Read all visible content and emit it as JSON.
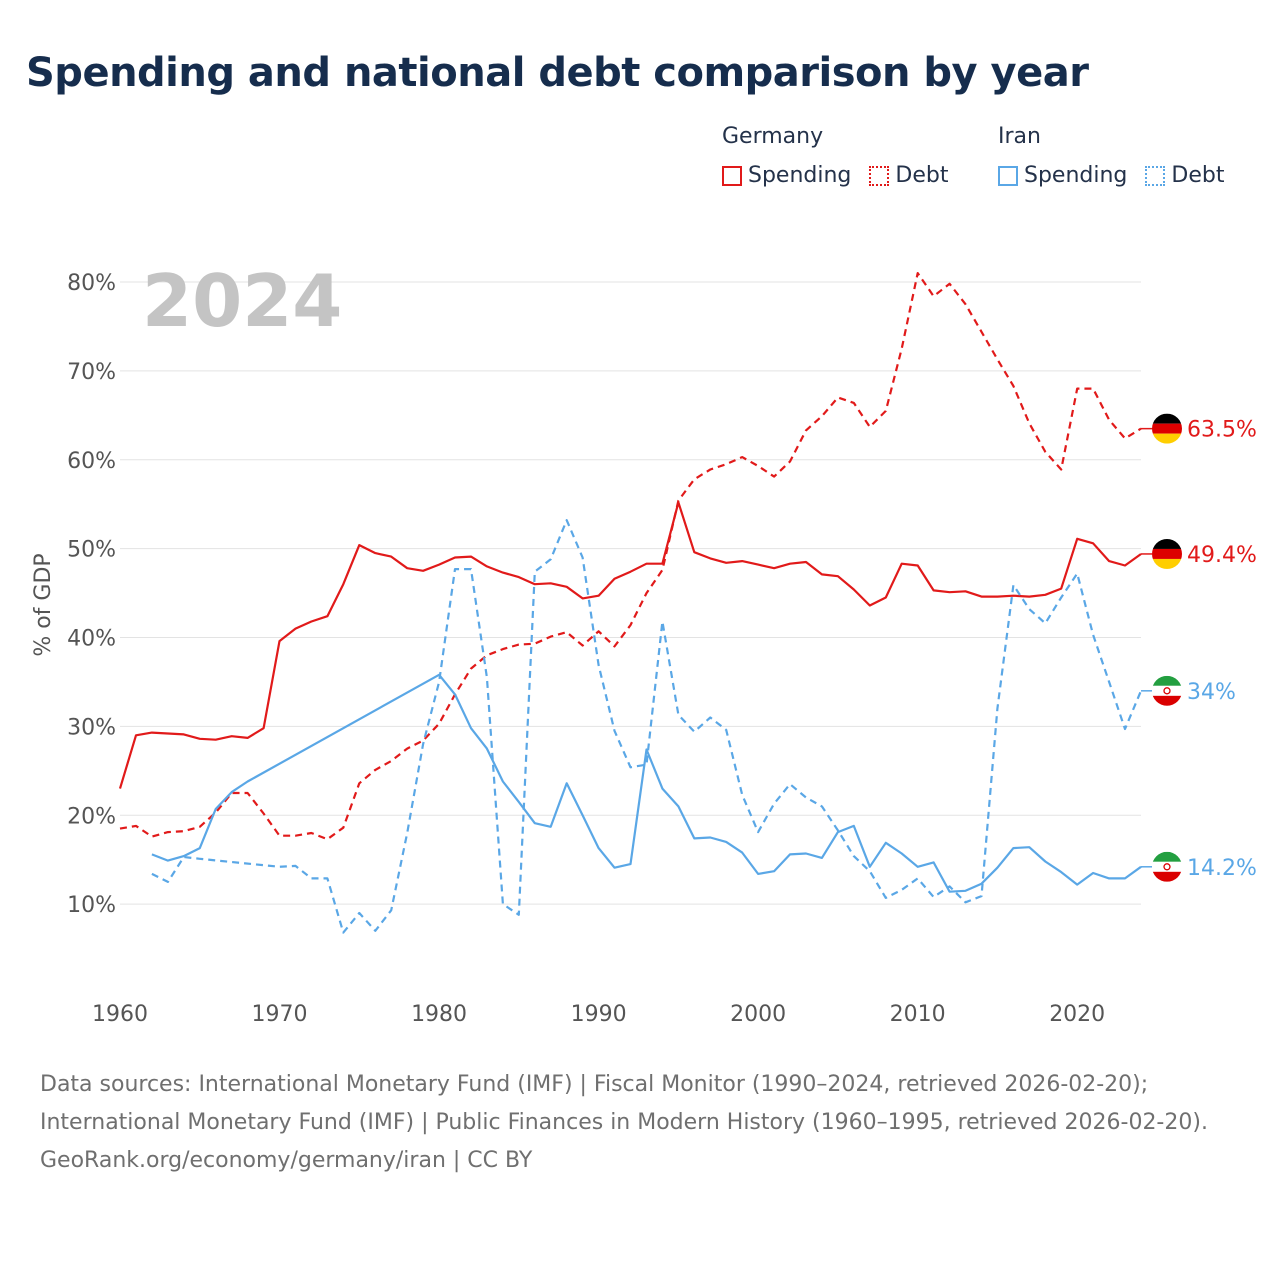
{
  "title": "Spending and national debt comparison by year",
  "legend": {
    "groups": [
      {
        "name": "Germany",
        "color": "#e11a1a",
        "items": [
          {
            "label": "Spending",
            "style": "solid"
          },
          {
            "label": "Debt",
            "style": "dotted"
          }
        ]
      },
      {
        "name": "Iran",
        "color": "#5aa7e6",
        "items": [
          {
            "label": "Spending",
            "style": "solid"
          },
          {
            "label": "Debt",
            "style": "dotted"
          }
        ]
      }
    ]
  },
  "colors": {
    "germany": "#e11a1a",
    "iran": "#5aa7e6",
    "grid": "#e3e3e3",
    "axis_text": "#555555",
    "year_watermark": "#c4c4c4"
  },
  "year_label": "2024",
  "end_labels": [
    {
      "series": "germany_debt",
      "text": "63.5%",
      "flag": "germany-flag-icon"
    },
    {
      "series": "germany_spending",
      "text": "49.4%",
      "flag": "germany-flag-icon"
    },
    {
      "series": "iran_debt",
      "text": "34%",
      "flag": "iran-flag-icon"
    },
    {
      "series": "iran_spending",
      "text": "14.2%",
      "flag": "iran-flag-icon"
    }
  ],
  "footer": {
    "sources": "Data sources: International Monetary Fund (IMF) | Fiscal Monitor (1990–2024, retrieved 2026-02-20); International Monetary Fund (IMF) | Public Finances in Modern History (1960–1995, retrieved 2026-02-20).",
    "attribution": "GeoRank.org/economy/germany/iran | CC BY"
  },
  "chart_data": {
    "type": "line",
    "title": "Spending and national debt comparison by year",
    "xlabel": "",
    "ylabel": "% of GDP",
    "xlim": [
      1960,
      2024
    ],
    "ylim": [
      0,
      80
    ],
    "x_ticks": [
      1960,
      1970,
      1980,
      1990,
      2000,
      2010,
      2020
    ],
    "y_ticks": [
      10,
      20,
      30,
      40,
      50,
      60,
      70,
      80
    ],
    "y_tick_suffix": "%",
    "grid": true,
    "legend_position": "top-right",
    "series": [
      {
        "id": "germany_spending",
        "name": "Germany Spending",
        "country": "germany",
        "style": "solid",
        "x": [
          1960,
          1961,
          1962,
          1963,
          1964,
          1965,
          1966,
          1967,
          1968,
          1969,
          1970,
          1971,
          1972,
          1973,
          1974,
          1975,
          1976,
          1977,
          1978,
          1979,
          1980,
          1981,
          1982,
          1983,
          1984,
          1985,
          1986,
          1987,
          1988,
          1989,
          1990,
          1991,
          1992,
          1993,
          1994,
          1995,
          1996,
          1997,
          1998,
          1999,
          2000,
          2001,
          2002,
          2003,
          2004,
          2005,
          2006,
          2007,
          2008,
          2009,
          2010,
          2011,
          2012,
          2013,
          2014,
          2015,
          2016,
          2017,
          2018,
          2019,
          2020,
          2021,
          2022,
          2023,
          2024
        ],
        "values": [
          23,
          29,
          29.3,
          29.2,
          29.1,
          28.6,
          28.5,
          28.9,
          28.7,
          29.8,
          39.6,
          41,
          41.8,
          42.4,
          46,
          50.4,
          49.5,
          49.1,
          47.8,
          47.5,
          48.2,
          49,
          49.1,
          48,
          47.3,
          46.8,
          46,
          46.1,
          45.7,
          44.4,
          44.7,
          46.6,
          47.4,
          48.3,
          48.3,
          55.2,
          49.6,
          48.9,
          48.4,
          48.6,
          48.2,
          47.8,
          48.3,
          48.5,
          47.1,
          46.9,
          45.4,
          43.6,
          44.5,
          48.3,
          48.1,
          45.3,
          45.1,
          45.2,
          44.6,
          44.6,
          44.7,
          44.6,
          44.8,
          45.5,
          51.1,
          50.6,
          48.6,
          48.1,
          49.4
        ]
      },
      {
        "id": "germany_debt",
        "name": "Germany Debt",
        "country": "germany",
        "style": "dashed",
        "x": [
          1960,
          1961,
          1962,
          1963,
          1964,
          1965,
          1966,
          1967,
          1968,
          1969,
          1970,
          1971,
          1972,
          1973,
          1974,
          1975,
          1976,
          1977,
          1978,
          1979,
          1980,
          1981,
          1982,
          1983,
          1984,
          1985,
          1986,
          1987,
          1988,
          1989,
          1990,
          1991,
          1992,
          1993,
          1994,
          1995,
          1996,
          1997,
          1998,
          1999,
          2000,
          2001,
          2002,
          2003,
          2004,
          2005,
          2006,
          2007,
          2008,
          2009,
          2010,
          2011,
          2012,
          2013,
          2014,
          2015,
          2016,
          2017,
          2018,
          2019,
          2020,
          2021,
          2022,
          2023,
          2024
        ],
        "values": [
          18.5,
          18.8,
          17.6,
          18.1,
          18.2,
          18.7,
          20.3,
          22.5,
          22.5,
          20.2,
          17.7,
          17.7,
          18,
          17.3,
          18.6,
          23.6,
          25.1,
          26.1,
          27.5,
          28.4,
          30.3,
          33.6,
          36.5,
          38,
          38.7,
          39.2,
          39.3,
          40.1,
          40.6,
          39.1,
          40.7,
          39,
          41.4,
          45,
          47.6,
          55.4,
          57.8,
          58.9,
          59.5,
          60.3,
          59.3,
          58.1,
          59.8,
          63.3,
          64.9,
          67,
          66.4,
          63.7,
          65.5,
          72.5,
          81,
          78.4,
          79.8,
          77.5,
          74.4,
          71.3,
          68.3,
          64.1,
          60.9,
          58.9,
          68,
          68,
          64.5,
          62.4,
          63.5
        ]
      },
      {
        "id": "iran_spending",
        "name": "Iran Spending",
        "country": "iran",
        "style": "solid",
        "x": [
          1962,
          1963,
          1964,
          1965,
          1966,
          1967,
          1968,
          1980,
          1981,
          1982,
          1983,
          1984,
          1985,
          1986,
          1987,
          1988,
          1989,
          1990,
          1991,
          1992,
          1993,
          1994,
          1995,
          1996,
          1997,
          1998,
          1999,
          2000,
          2001,
          2002,
          2003,
          2004,
          2005,
          2006,
          2007,
          2008,
          2009,
          2010,
          2011,
          2012,
          2013,
          2014,
          2015,
          2016,
          2017,
          2018,
          2019,
          2020,
          2021,
          2022,
          2023,
          2024
        ],
        "values": [
          15.6,
          14.9,
          15.4,
          16.3,
          20.7,
          22.6,
          23.8,
          35.8,
          33.6,
          29.8,
          27.5,
          23.8,
          21.5,
          19.1,
          18.7,
          23.6,
          20,
          16.3,
          14.1,
          14.5,
          27.4,
          23,
          21,
          17.4,
          17.5,
          17,
          15.8,
          13.4,
          13.7,
          15.6,
          15.7,
          15.2,
          18.1,
          18.8,
          14.2,
          16.9,
          15.7,
          14.2,
          14.7,
          11.4,
          11.5,
          12.3,
          14.1,
          16.3,
          16.4,
          14.8,
          13.6,
          12.2,
          13.5,
          12.9,
          12.9,
          14.2
        ]
      },
      {
        "id": "iran_debt",
        "name": "Iran Debt",
        "country": "iran",
        "style": "dashed",
        "x": [
          1962,
          1963,
          1964,
          1965,
          1970,
          1971,
          1972,
          1973,
          1974,
          1975,
          1976,
          1977,
          1978,
          1979,
          1980,
          1981,
          1982,
          1983,
          1984,
          1985,
          1986,
          1987,
          1988,
          1989,
          1990,
          1991,
          1992,
          1993,
          1994,
          1995,
          1996,
          1997,
          1998,
          1999,
          2000,
          2001,
          2002,
          2003,
          2004,
          2005,
          2006,
          2007,
          2008,
          2009,
          2010,
          2011,
          2012,
          2013,
          2014,
          2015,
          2016,
          2017,
          2018,
          2019,
          2020,
          2021,
          2022,
          2023,
          2024
        ],
        "values": [
          13.4,
          12.5,
          15.3,
          15.1,
          14.2,
          14.3,
          12.9,
          12.9,
          6.8,
          9,
          7,
          9.3,
          18,
          28,
          35,
          47.7,
          47.7,
          35.5,
          10,
          8.8,
          47.4,
          48.8,
          53.2,
          49,
          36.9,
          29.5,
          25.4,
          25.7,
          41.8,
          31.3,
          29.4,
          31,
          29.6,
          22.3,
          18.1,
          21.3,
          23.5,
          22,
          21,
          18.3,
          15.4,
          13.7,
          10.7,
          11.6,
          12.9,
          10.8,
          12,
          10.2,
          10.9,
          32,
          45.9,
          43.2,
          41.6,
          44.5,
          47.2,
          40.3,
          35,
          29.7,
          34
        ]
      }
    ]
  }
}
